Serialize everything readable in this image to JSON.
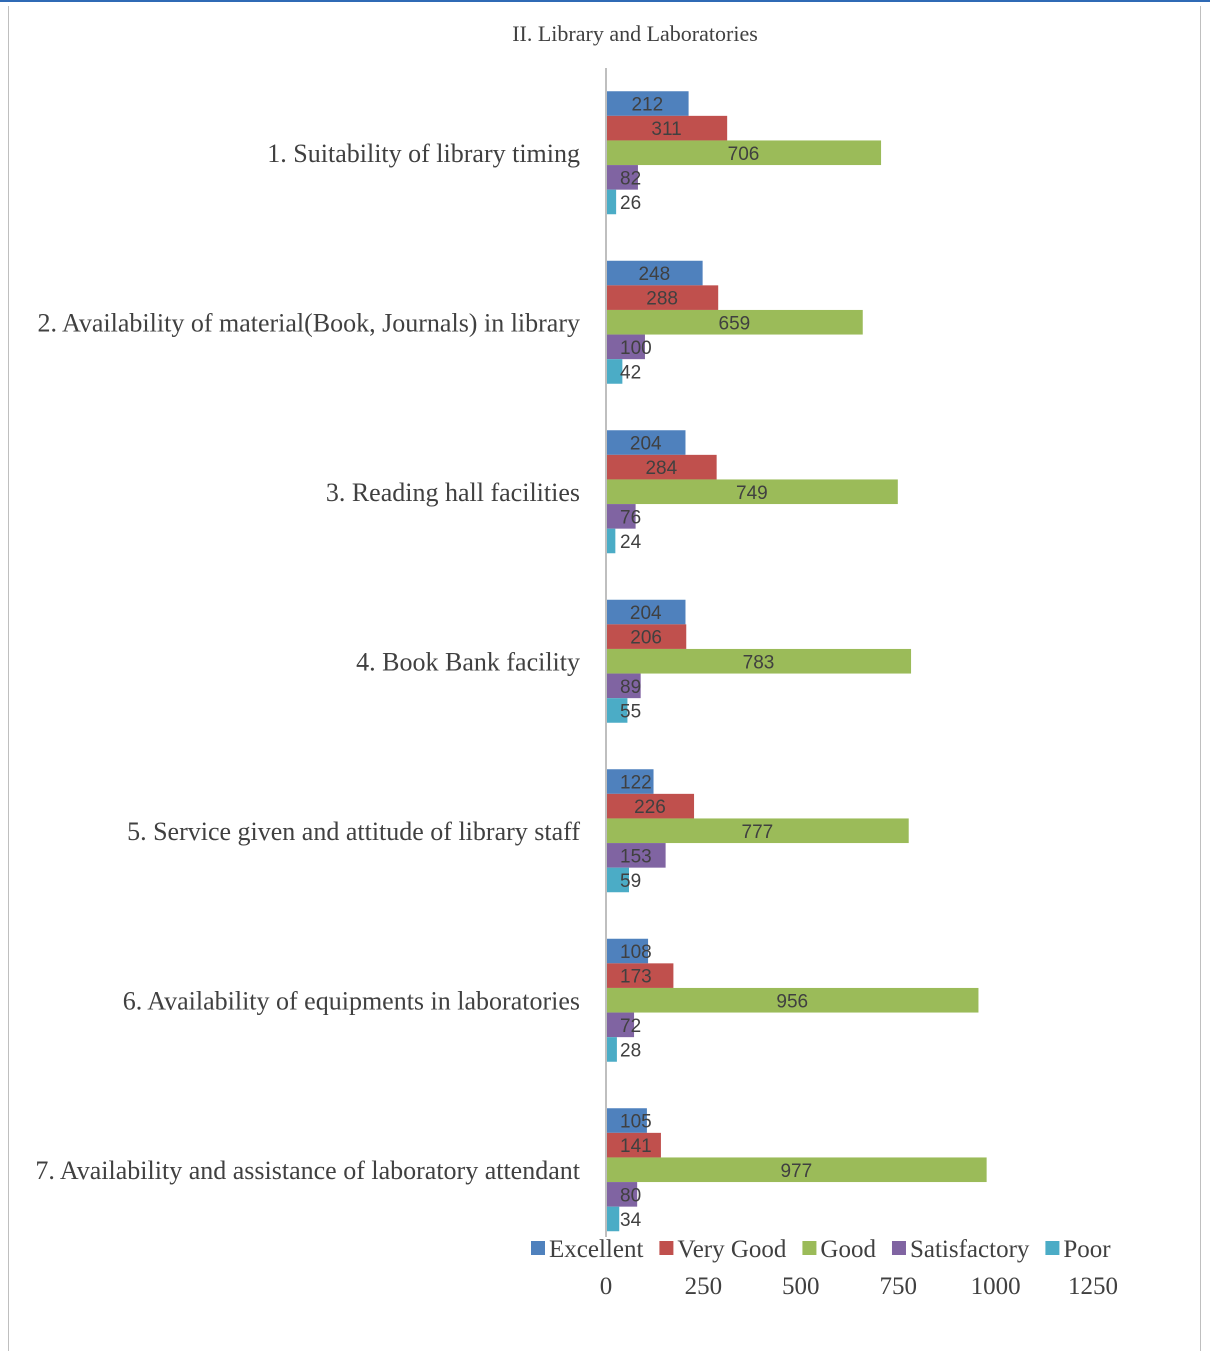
{
  "chart_data": {
    "type": "bar",
    "orientation": "horizontal",
    "title": "II. Library and Laboratories",
    "categories": [
      "1. Suitability of library timing",
      "2. Availability of material(Book, Journals) in library",
      "3. Reading hall facilities",
      "4. Book Bank facility",
      "5. Service given and attitude of library staff",
      "6. Availability of equipments in laboratories",
      "7. Availability and assistance of laboratory attendant"
    ],
    "series": [
      {
        "name": "Excellent",
        "color": "#4f81bd",
        "values": [
          212,
          248,
          204,
          204,
          122,
          108,
          105
        ]
      },
      {
        "name": "Very Good",
        "color": "#c0504d",
        "values": [
          311,
          288,
          284,
          206,
          226,
          173,
          141
        ]
      },
      {
        "name": "Good",
        "color": "#9bbb59",
        "values": [
          706,
          659,
          749,
          783,
          777,
          956,
          977
        ]
      },
      {
        "name": "Satisfactory",
        "color": "#8064a2",
        "values": [
          82,
          100,
          76,
          89,
          153,
          72,
          80
        ]
      },
      {
        "name": "Poor",
        "color": "#4bacc6",
        "values": [
          26,
          42,
          24,
          55,
          59,
          28,
          34
        ]
      }
    ],
    "xlim": [
      0,
      1250
    ],
    "xticks": [
      "0",
      "250",
      "500",
      "750",
      "1000",
      "1250"
    ],
    "data_labels": true,
    "legend_position": "bottom",
    "grid": false
  }
}
